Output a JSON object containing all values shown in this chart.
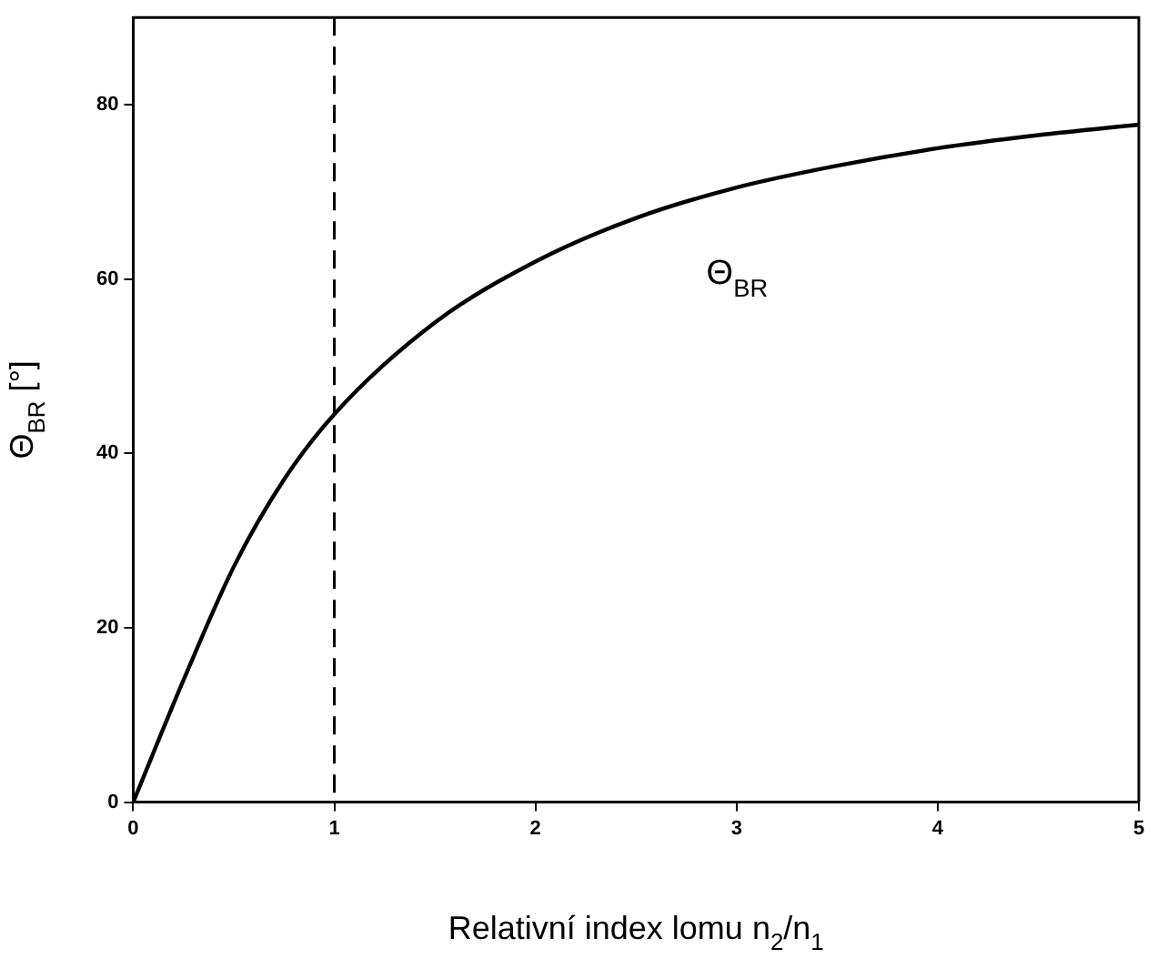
{
  "chart_data": {
    "type": "line",
    "xlabel": "Relativní index lomu n$_{2}$/n$_{1}$",
    "ylabel": "Θ$_{BR}$ [°]",
    "x": [
      0,
      0.25,
      0.5,
      0.75,
      1,
      1.5,
      2,
      2.5,
      3,
      3.5,
      4,
      4.5,
      5
    ],
    "series": [
      {
        "color": "#000000",
        "values": [
          0,
          14,
          27,
          37,
          44.5,
          55,
          62,
          67,
          70.5,
          73,
          75,
          76.5,
          77.7
        ]
      }
    ],
    "xlim": [
      0,
      5
    ],
    "xticks": [
      0,
      1,
      2,
      3,
      4,
      5
    ],
    "ylim": [
      0,
      90
    ],
    "yticks": [
      0,
      20,
      40,
      60,
      80
    ],
    "ref_lines": [
      {
        "axis": "x",
        "value": 1,
        "color": "#000000",
        "line_style": "dashed"
      }
    ],
    "annotations": [
      "Θ$_{BR}$"
    ],
    "grid": false,
    "legend": false,
    "marker": "none",
    "line_style": "solid"
  }
}
